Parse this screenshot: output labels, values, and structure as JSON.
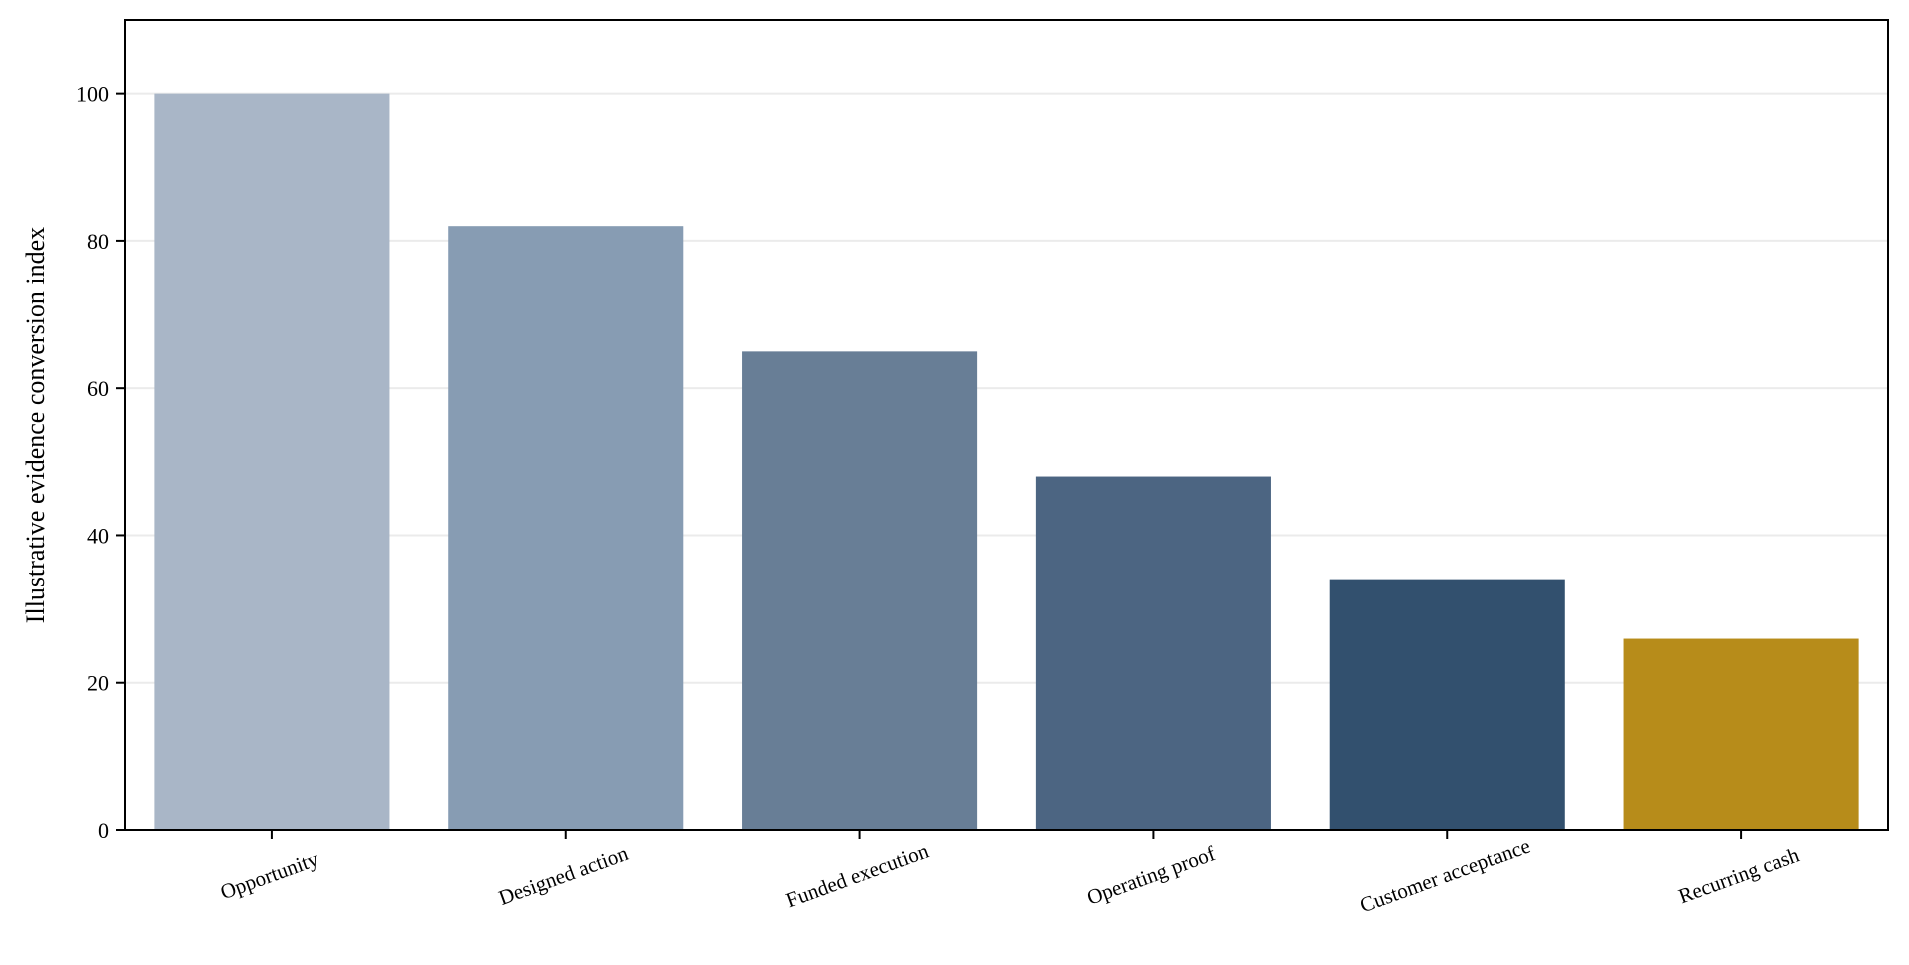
{
  "chart_data": {
    "type": "bar",
    "title": "",
    "xlabel": "",
    "ylabel": "Illustrative evidence conversion index",
    "categories": [
      "Opportunity",
      "Designed action",
      "Funded execution",
      "Operating proof",
      "Customer acceptance",
      "Recurring cash"
    ],
    "values": [
      100,
      82,
      65,
      48,
      34,
      26
    ],
    "bar_colors": [
      "#a9b6c7",
      "#879cb3",
      "#687e96",
      "#4c6582",
      "#32506e",
      "#b78c1a"
    ],
    "ylim": [
      0,
      110
    ],
    "yticks": [
      0,
      20,
      40,
      60,
      80,
      100
    ],
    "ytick_labels": [
      "0",
      "20",
      "40",
      "60",
      "80",
      "100"
    ],
    "grid": "horizontal",
    "legend": "none",
    "xtick_rotation_deg": -20
  },
  "colors": {
    "axis": "#000000",
    "grid": "#ebebeb",
    "background": "#ffffff"
  }
}
